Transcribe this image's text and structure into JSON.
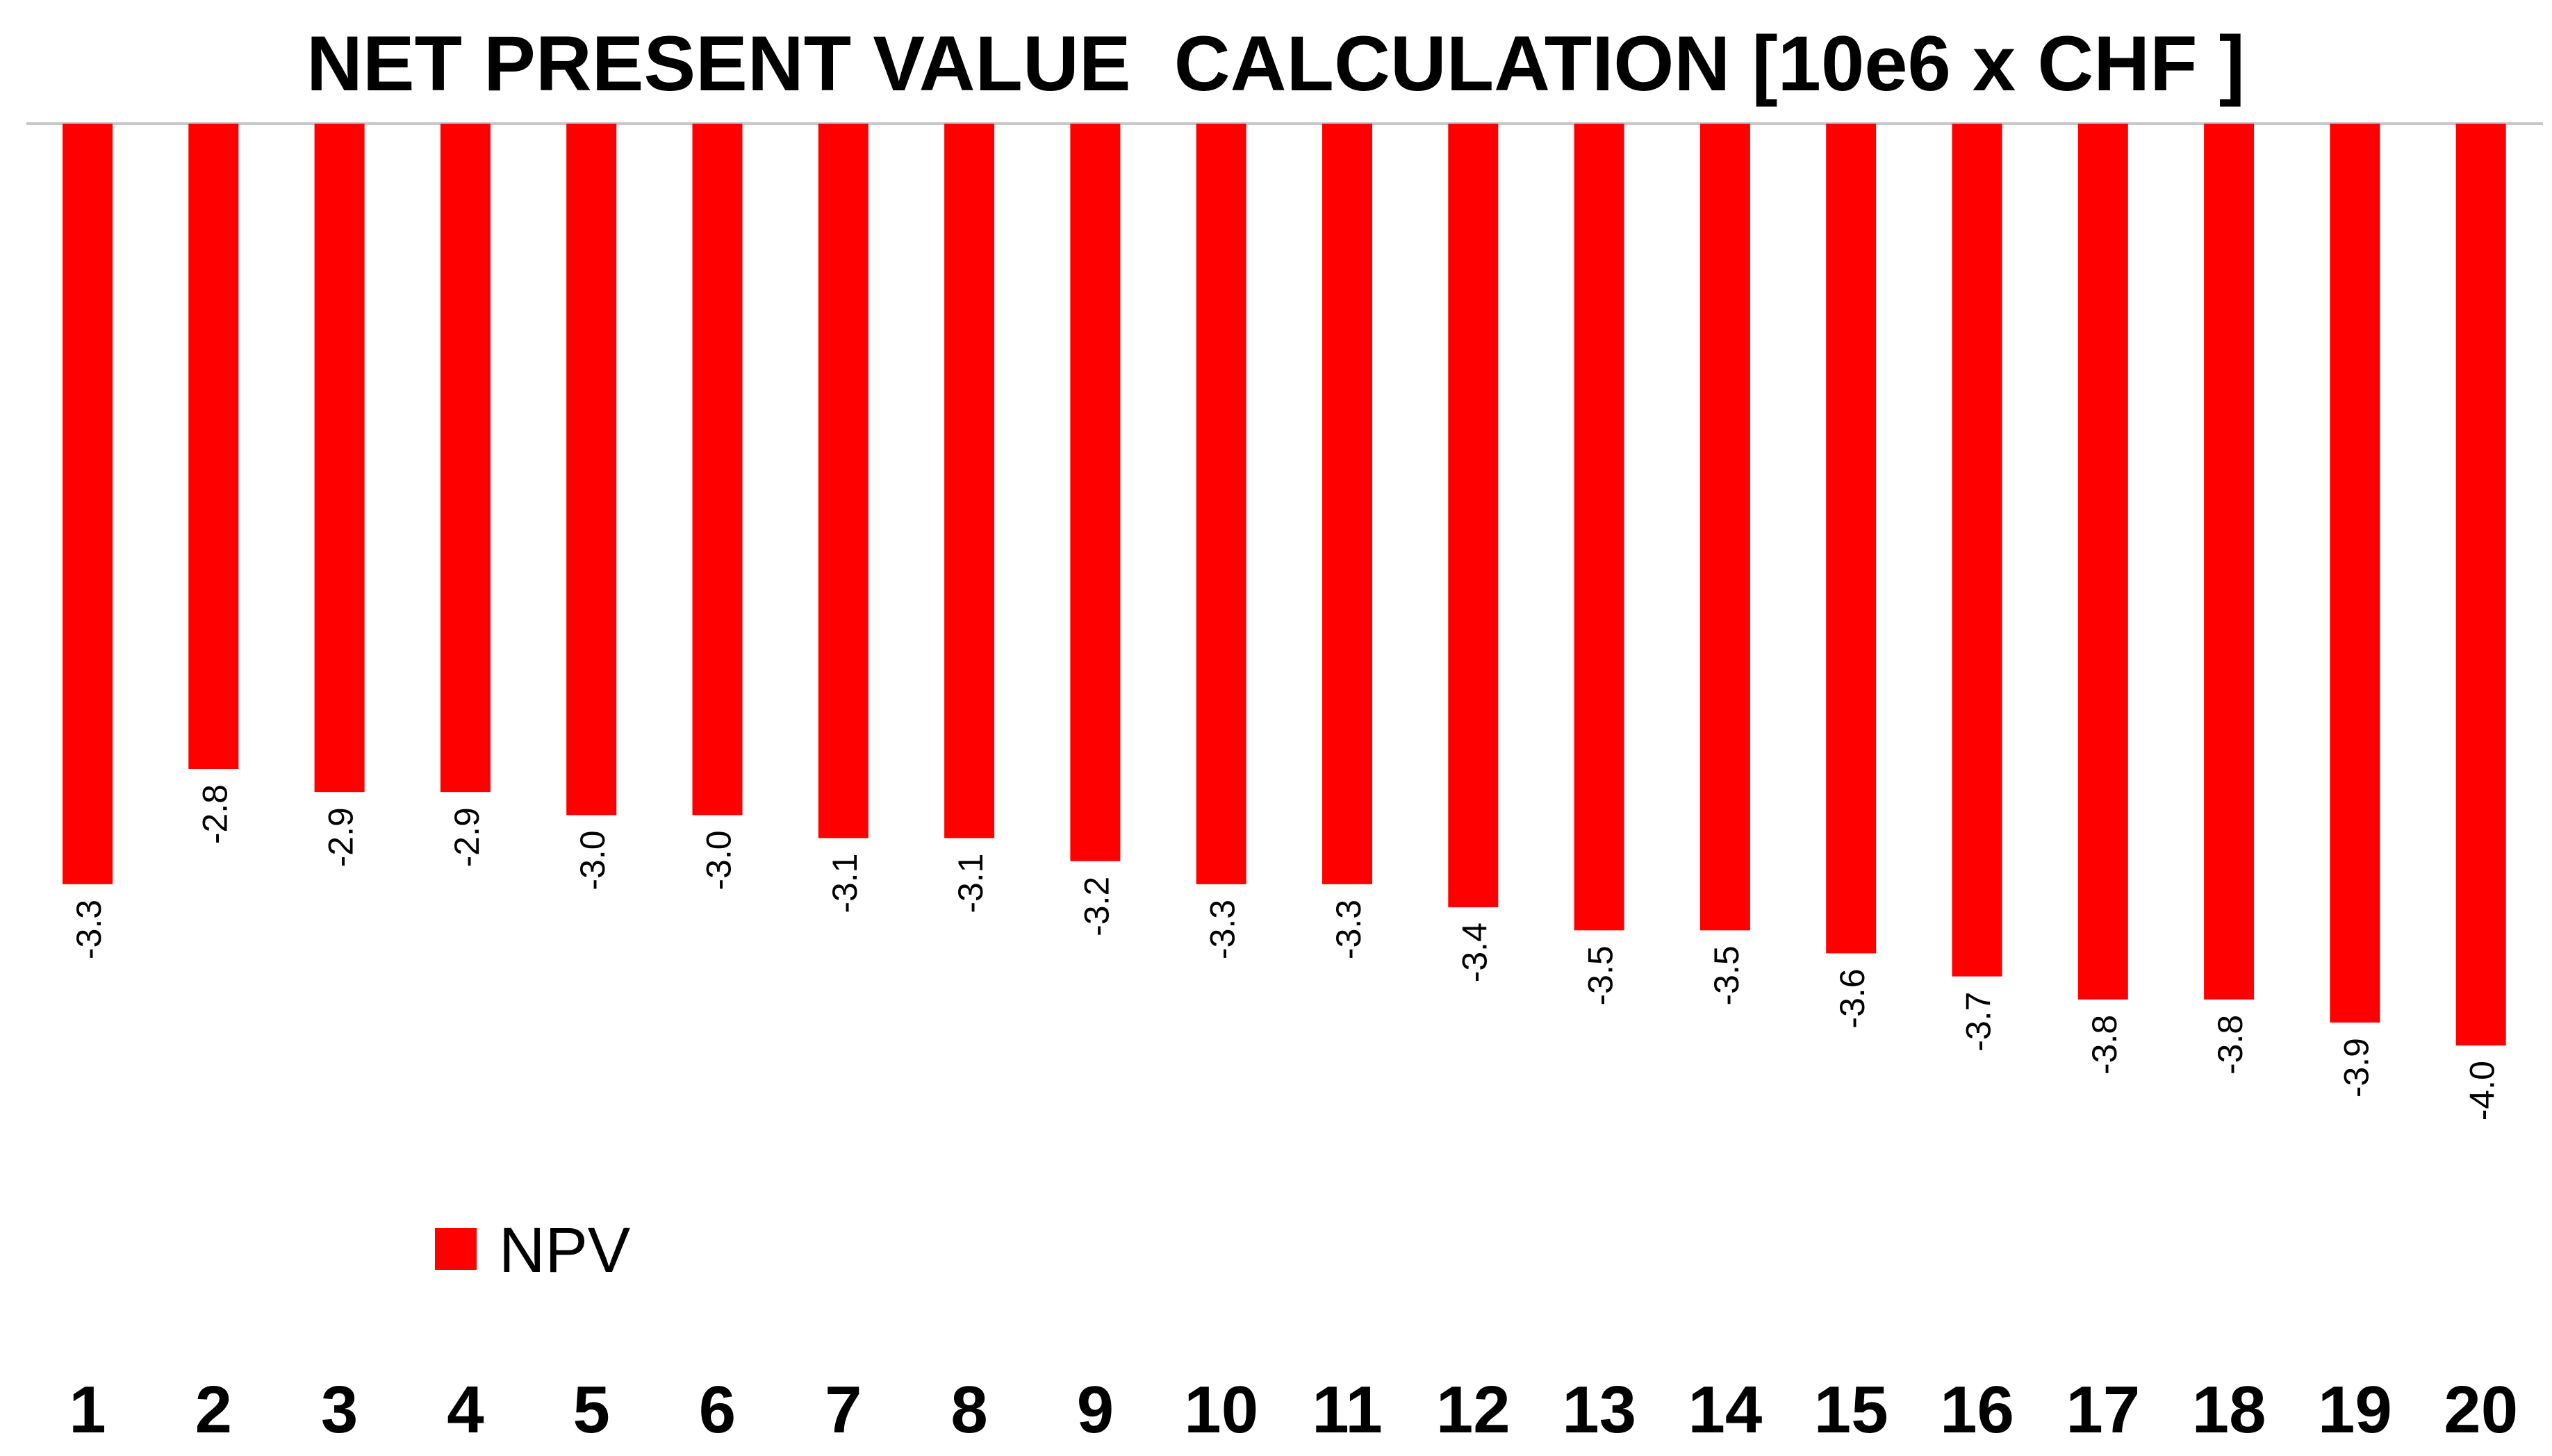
{
  "chart_data": {
    "type": "bar",
    "title": "NET PRESENT VALUE  CALCULATION [10e6 x CHF ]",
    "xlabel": "",
    "ylabel": "",
    "categories": [
      "1",
      "2",
      "3",
      "4",
      "5",
      "6",
      "7",
      "8",
      "9",
      "10",
      "11",
      "12",
      "13",
      "14",
      "15",
      "16",
      "17",
      "18",
      "19",
      "20"
    ],
    "series": [
      {
        "name": "NPV",
        "color": "#ff0000",
        "values": [
          -3.3,
          -2.8,
          -2.9,
          -2.9,
          -3.0,
          -3.0,
          -3.1,
          -3.1,
          -3.2,
          -3.3,
          -3.3,
          -3.4,
          -3.5,
          -3.5,
          -3.6,
          -3.7,
          -3.8,
          -3.8,
          -3.9,
          -4.0
        ]
      }
    ],
    "data_labels": [
      "-3.3",
      "-2.8",
      "-2.9",
      "-2.9",
      "-3.0",
      "-3.0",
      "-3.1",
      "-3.1",
      "-3.2",
      "-3.3",
      "-3.3",
      "-3.4",
      "-3.5",
      "-3.5",
      "-3.6",
      "-3.7",
      "-3.8",
      "-3.8",
      "-3.9",
      "-4.0"
    ],
    "ylim": [
      -5.6,
      0
    ],
    "grid": false,
    "legend": {
      "position": "bottom-left",
      "entries": [
        "NPV"
      ]
    },
    "colors": {
      "bar": "#ff0000",
      "axis_line": "#c8c8c8",
      "text": "#000000",
      "background": "#ffffff"
    }
  }
}
